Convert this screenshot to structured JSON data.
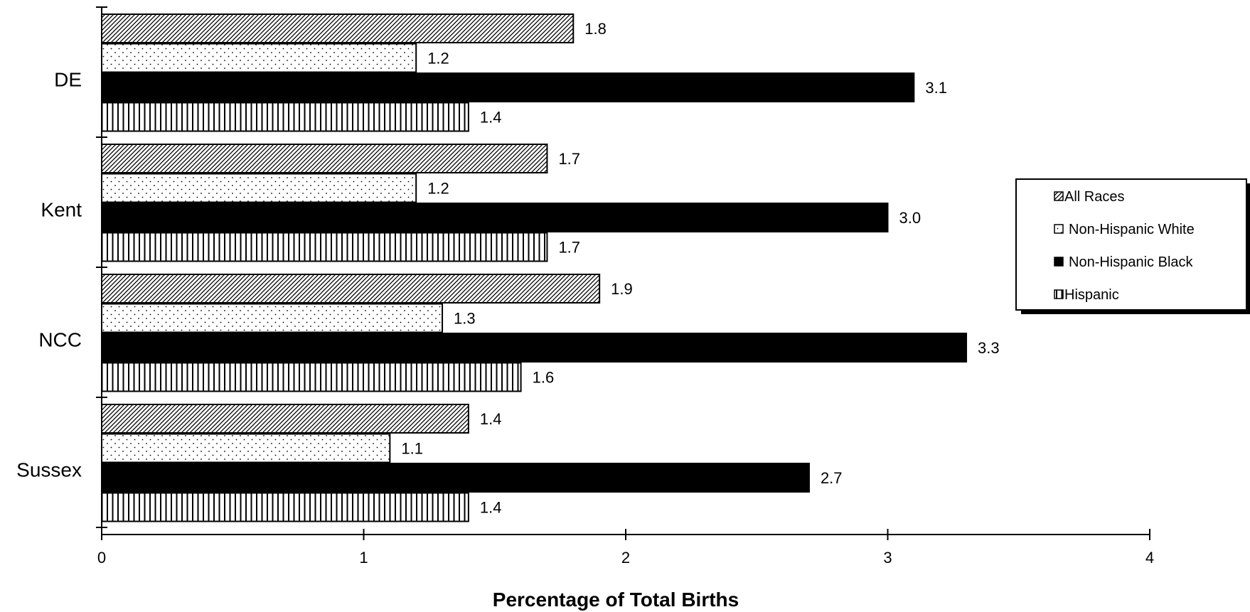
{
  "chart_data": {
    "type": "bar",
    "orientation": "horizontal",
    "categories": [
      "DE",
      "Kent",
      "NCC",
      "Sussex"
    ],
    "series": [
      {
        "name": "All Races",
        "values": [
          1.8,
          1.7,
          1.9,
          1.4
        ],
        "fill": "diagonal-hatch"
      },
      {
        "name": "Non-Hispanic White",
        "values": [
          1.2,
          1.2,
          1.3,
          1.1
        ],
        "fill": "dots"
      },
      {
        "name": "Non-Hispanic Black",
        "values": [
          3.1,
          3.0,
          3.3,
          2.7
        ],
        "fill": "solid-black"
      },
      {
        "name": "Hispanic",
        "values": [
          1.4,
          1.7,
          1.6,
          1.4
        ],
        "fill": "vertical-stripes"
      }
    ],
    "data_labels": [
      [
        "1.8",
        "1.2",
        "3.1",
        "1.4"
      ],
      [
        "1.7",
        "1.2",
        "3.0",
        "1.7"
      ],
      [
        "1.9",
        "1.3",
        "3.3",
        "1.6"
      ],
      [
        "1.4",
        "1.1",
        "2.7",
        "1.4"
      ]
    ],
    "xticks": [
      "0",
      "1",
      "2",
      "3",
      "4"
    ],
    "xlim": [
      0,
      4
    ],
    "xlabel": "Percentage of Total Births",
    "ylabel": "",
    "title": "",
    "grid": false,
    "legend_position": "right",
    "colors": {
      "bar_fill": "#000000",
      "background": "#ffffff"
    }
  }
}
